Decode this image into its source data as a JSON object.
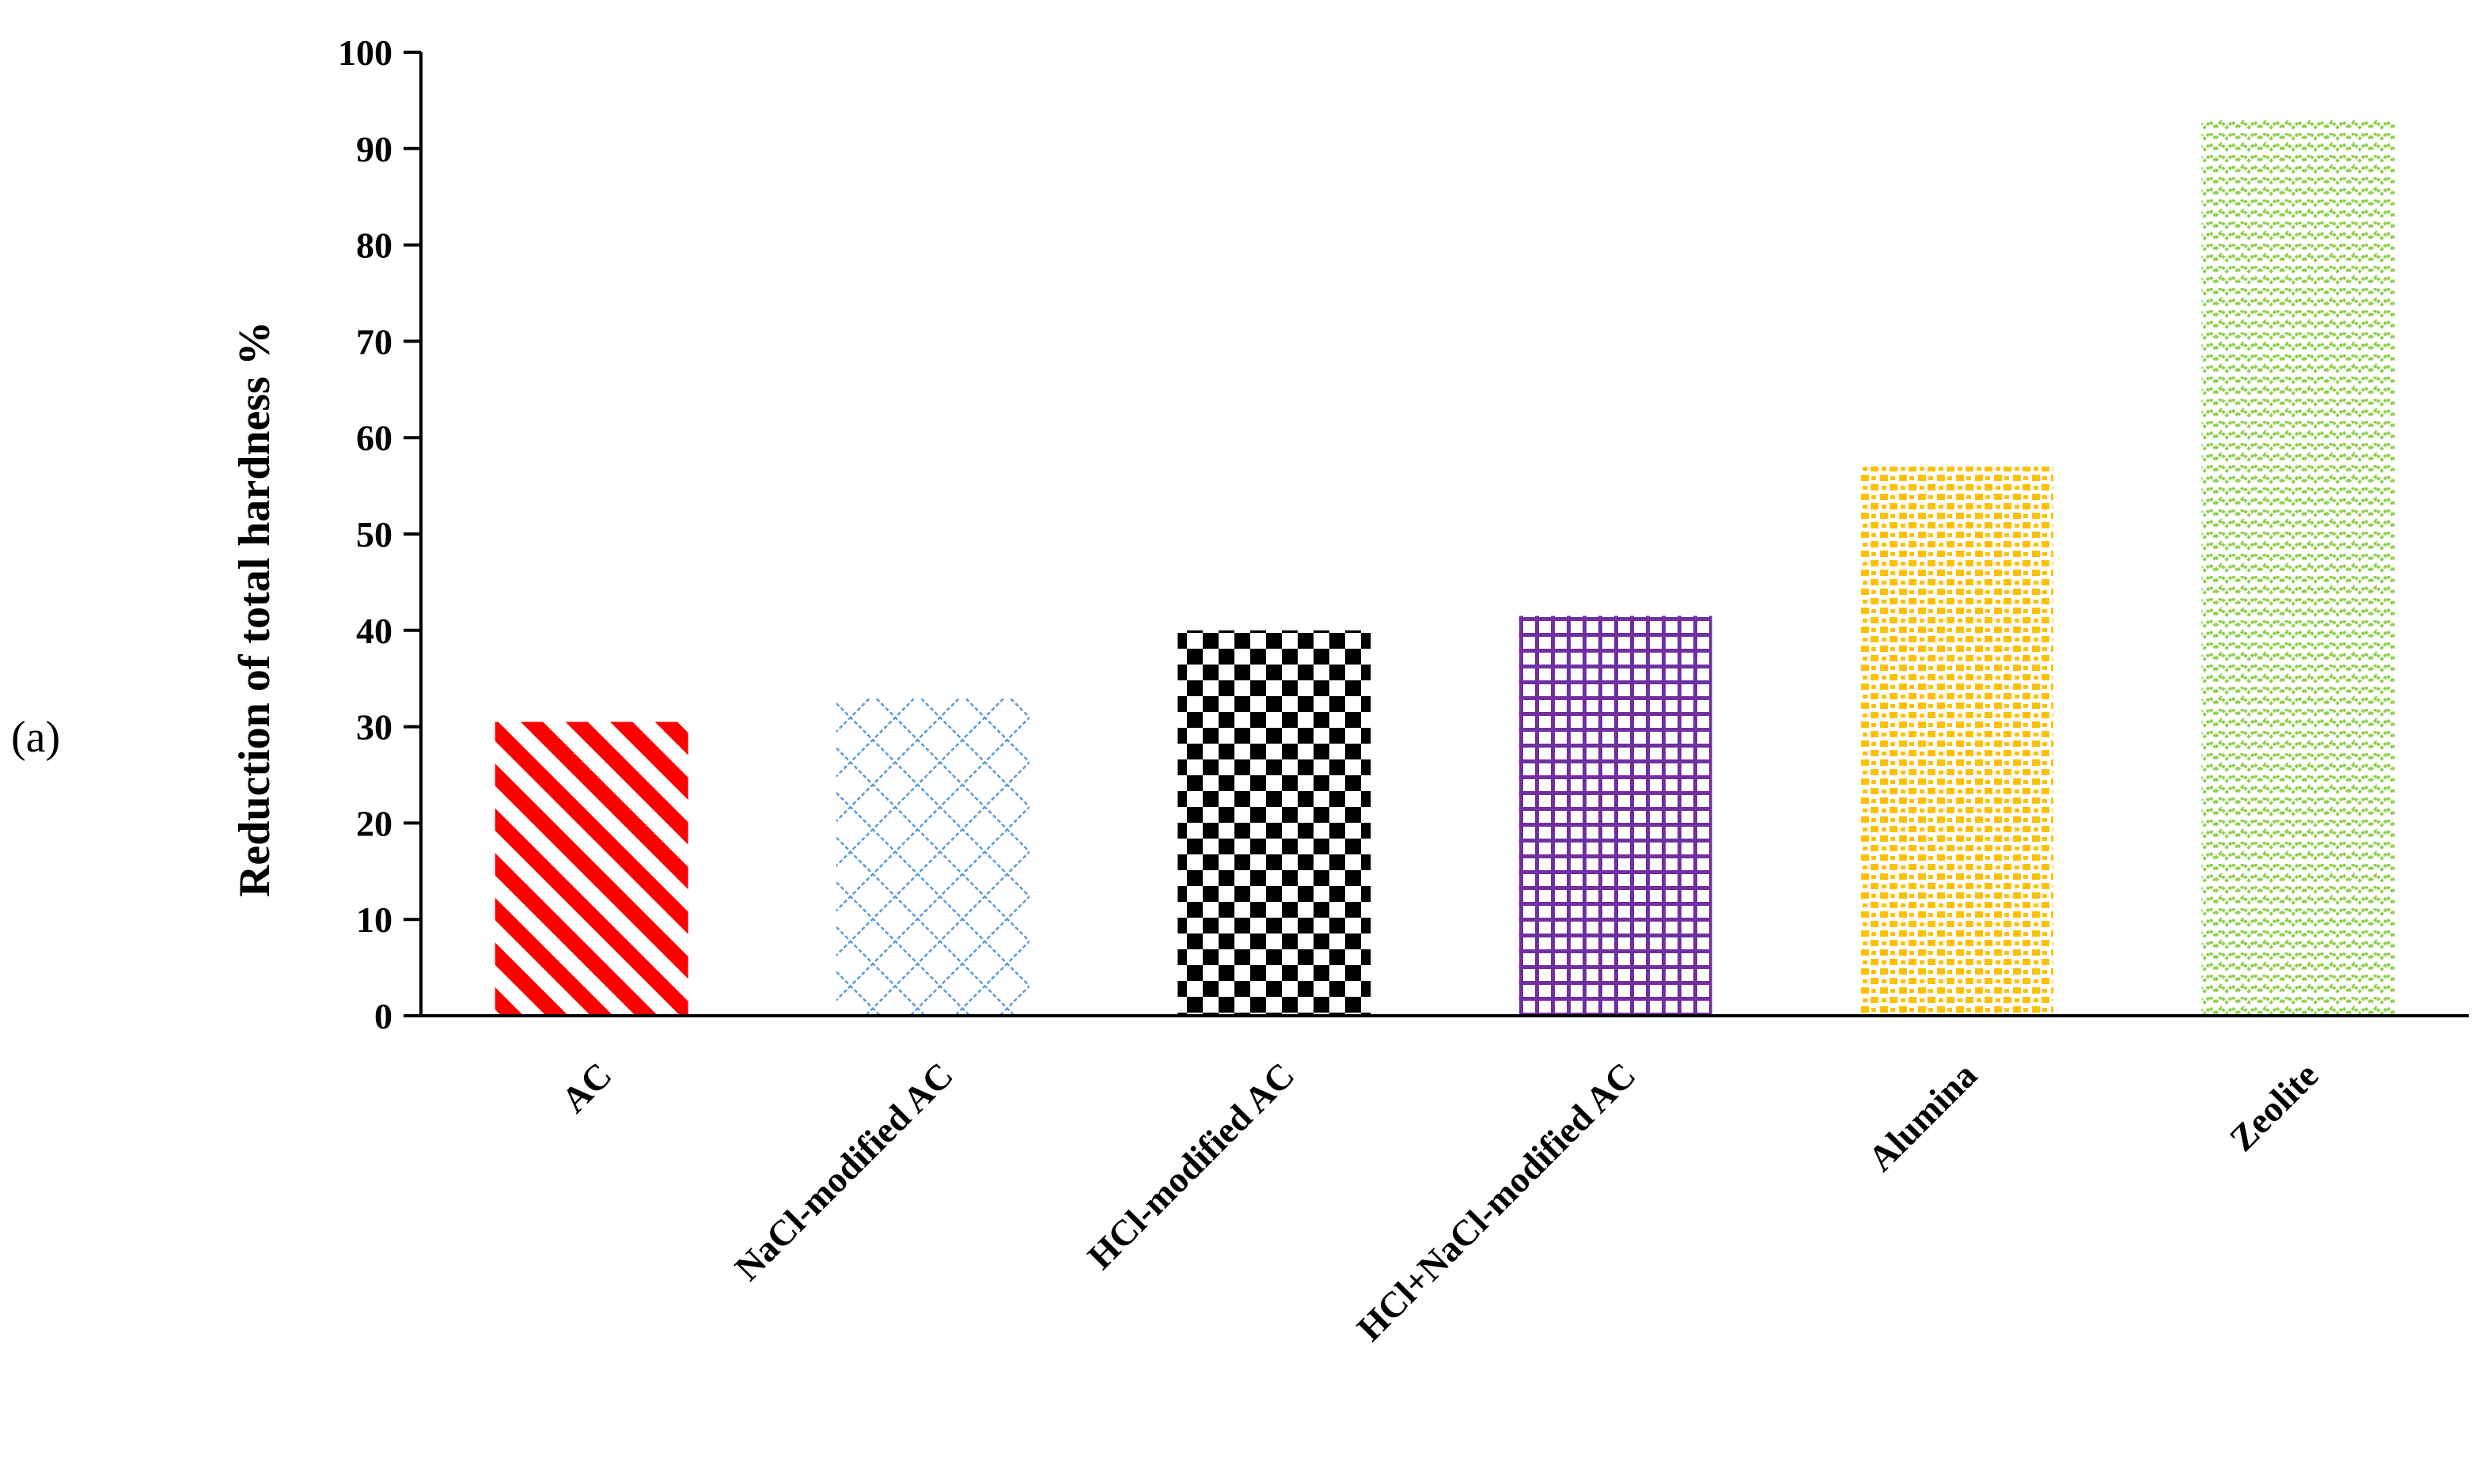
{
  "panel_label": "(a)",
  "chart_data": {
    "type": "bar",
    "title": "",
    "xlabel": "",
    "ylabel": "Reduction of total hardness %",
    "ylim": [
      0,
      100
    ],
    "yticks": [
      "0",
      "10",
      "20",
      "30",
      "40",
      "50",
      "60",
      "70",
      "80",
      "90",
      "100"
    ],
    "categories": [
      "AC",
      "NaCl-modified AC",
      "HCl-modified AC",
      "HCl+NaCl-modified AC",
      "Alumina",
      "Zeolite"
    ],
    "values": [
      30.5,
      33,
      40,
      41.5,
      57,
      93
    ],
    "bar_styles": [
      {
        "pattern": "diagonal-stripes",
        "color": "#ff0000"
      },
      {
        "pattern": "diamond-lattice",
        "color": "#5b9bd5"
      },
      {
        "pattern": "checkerboard",
        "color": "#000000"
      },
      {
        "pattern": "grid",
        "color": "#7030a0"
      },
      {
        "pattern": "dots",
        "color": "#ffc000"
      },
      {
        "pattern": "zigzag",
        "color": "#92d050"
      }
    ],
    "grid": false,
    "legend": "none"
  }
}
